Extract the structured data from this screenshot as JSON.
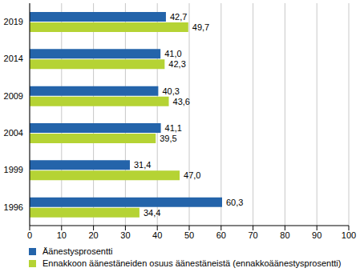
{
  "chart_data": {
    "type": "bar",
    "orientation": "horizontal",
    "categories": [
      "2019",
      "2014",
      "2009",
      "2004",
      "1999",
      "1996"
    ],
    "series": [
      {
        "name": "Äänestysprosentti",
        "color": "#2464aa",
        "values": [
          42.7,
          41.0,
          40.3,
          41.1,
          31.4,
          60.3
        ],
        "value_labels": [
          "42,7",
          "41,0",
          "40,3",
          "41,1",
          "31,4",
          "60,3"
        ]
      },
      {
        "name": "Ennakkoon äänestäneiden osuus äänestäneistä (ennakkoäänestysprosentti)",
        "color": "#b5d334",
        "values": [
          49.7,
          42.3,
          43.6,
          39.5,
          47.0,
          34.4
        ],
        "value_labels": [
          "49,7",
          "42,3",
          "43,6",
          "39,5",
          "47,0",
          "34,4"
        ]
      }
    ],
    "xlim": [
      0,
      100
    ],
    "xticks": [
      0,
      10,
      20,
      30,
      40,
      50,
      60,
      70,
      80,
      90,
      100
    ],
    "grid": true,
    "data_labels": true,
    "legend": "bottom"
  }
}
